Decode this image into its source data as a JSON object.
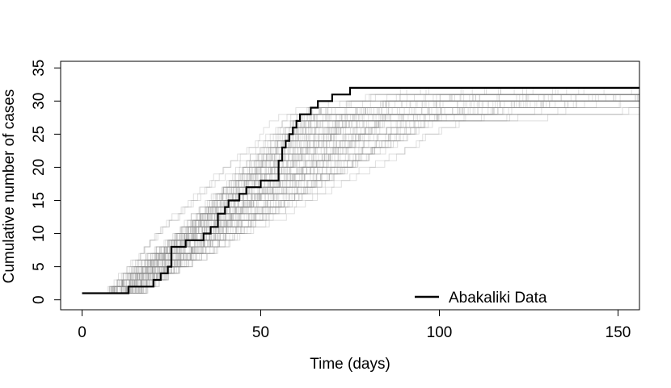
{
  "chart_data": {
    "type": "line",
    "title": "",
    "xlabel": "Time (days)",
    "ylabel": "Cumulative number of cases",
    "xlim": [
      -6,
      156
    ],
    "ylim": [
      -1.5,
      36
    ],
    "xticks": [
      0,
      50,
      100,
      150
    ],
    "xtick_labels": [
      "0",
      "50",
      "100",
      "150"
    ],
    "yticks": [
      0,
      5,
      10,
      15,
      20,
      25,
      30,
      35
    ],
    "ytick_labels": [
      "0",
      "5",
      "10",
      "15",
      "20",
      "25",
      "30",
      "35"
    ],
    "grid": false,
    "legend": {
      "position": "bottom-right",
      "entries": [
        "Abakaliki Data"
      ]
    },
    "colors": {
      "observed": "#000000",
      "simulated": "#8c8c8c"
    },
    "series": [
      {
        "name": "Abakaliki Data",
        "x": [
          0,
          13,
          18,
          20,
          22,
          24,
          25,
          27,
          29,
          34,
          36,
          38,
          40,
          41,
          42,
          44,
          46,
          48,
          50,
          53,
          55,
          56,
          57,
          58,
          59,
          60,
          61,
          62,
          64,
          66,
          70,
          71,
          73,
          75,
          76,
          156
        ],
        "y": [
          1,
          2,
          2,
          3,
          4,
          5,
          8,
          8,
          9,
          10,
          11,
          13,
          14,
          15,
          15,
          16,
          17,
          17,
          18,
          18,
          21,
          23,
          24,
          25,
          26,
          27,
          28,
          28,
          29,
          30,
          31,
          31,
          31,
          32,
          32,
          32
        ]
      }
    ],
    "simulations": {
      "description": "100 simulated epidemic trajectories (step curves)",
      "count": 100,
      "final_size_range": [
        30,
        32
      ],
      "x_range": [
        5,
        156
      ]
    }
  }
}
